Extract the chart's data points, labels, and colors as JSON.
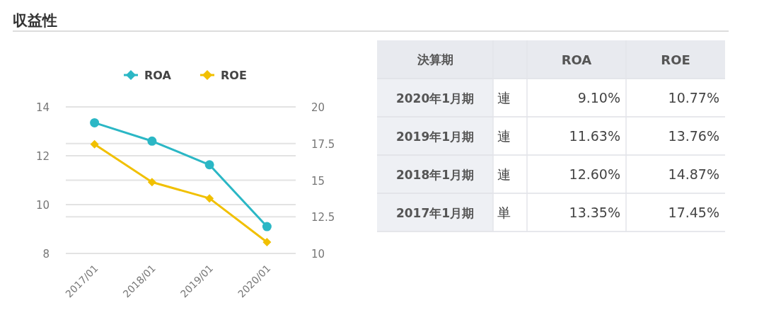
{
  "chart_data": [
    {
      "type": "line",
      "title": "収益性",
      "categories": [
        "2017/01",
        "2018/01",
        "2019/01",
        "2020/01"
      ],
      "series": [
        {
          "name": "ROA",
          "color": "#2bb7c5",
          "marker": "circle",
          "values": [
            13.35,
            12.6,
            11.63,
            9.1
          ]
        },
        {
          "name": "ROE",
          "color": "#f1c000",
          "marker": "diamond",
          "axis": "y2",
          "values": [
            17.45,
            14.87,
            13.76,
            10.77
          ]
        }
      ],
      "ylim": [
        8,
        14
      ],
      "yticks": [
        8,
        10,
        12,
        14
      ],
      "y2lim": [
        10,
        20
      ],
      "y2ticks": [
        10,
        12.5,
        15,
        17.5,
        20
      ],
      "grid": true,
      "legend": "top"
    },
    {
      "type": "other",
      "annotations": [
        "決算期"
      ],
      "categories": [
        "2020年1月期",
        "2019年1月期",
        "2018年1月期",
        "2017年1月期"
      ],
      "y2_categories": [
        "連",
        "連",
        "連",
        "単"
      ],
      "series": [
        {
          "name": "ROA",
          "values": [
            9.1,
            11.63,
            12.6,
            13.35
          ],
          "value_labels": [
            "9.10%",
            "11.63%",
            "12.60%",
            "13.35%"
          ]
        },
        {
          "name": "ROE",
          "values": [
            10.77,
            13.76,
            14.87,
            17.45
          ],
          "value_labels": [
            "10.77%",
            "13.76%",
            "14.87%",
            "17.45%"
          ]
        }
      ]
    }
  ]
}
